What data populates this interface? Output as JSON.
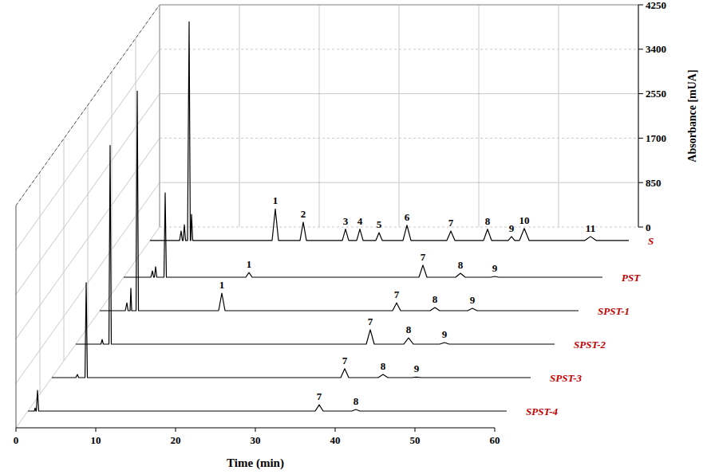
{
  "chart_data": {
    "type": "line",
    "xlabel": "Time (min)",
    "ylabel": "Absorbance [mUA]",
    "xlim": [
      0,
      60
    ],
    "xticks": [
      0,
      10,
      20,
      30,
      40,
      50,
      60
    ],
    "ylim": [
      0,
      4250
    ],
    "yticks": [
      0,
      850,
      1700,
      2550,
      3400,
      4250
    ],
    "grid": true,
    "series": [
      {
        "name": "S",
        "color": "#000000",
        "x": [
          0,
          3.7,
          3.9,
          4.05,
          4.15,
          4.3,
          4.45,
          4.7,
          4.9,
          5.05,
          5.1,
          5.2,
          5.35,
          15.3,
          15.7,
          16.1,
          18.8,
          19.2,
          19.6,
          24.1,
          24.5,
          24.9,
          25.9,
          26.3,
          26.7,
          28.3,
          28.7,
          29.1,
          31.7,
          32.2,
          32.7,
          37.2,
          37.7,
          38.2,
          41.8,
          42.3,
          42.8,
          44.9,
          45.3,
          45.7,
          46.3,
          46.9,
          47.5,
          54.5,
          55.2,
          55.9,
          60
        ],
        "values": [
          0,
          0,
          180,
          0,
          0,
          300,
          0,
          0,
          4180,
          0,
          0,
          500,
          0,
          0,
          600,
          0,
          0,
          350,
          0,
          0,
          215,
          0,
          0,
          215,
          0,
          0,
          150,
          0,
          0,
          290,
          0,
          0,
          180,
          0,
          0,
          215,
          0,
          0,
          75,
          0,
          0,
          230,
          0,
          0,
          75,
          0,
          0
        ],
        "annotations": [
          {
            "x": 15.7,
            "text": "1"
          },
          {
            "x": 19.2,
            "text": "2"
          },
          {
            "x": 24.5,
            "text": "3"
          },
          {
            "x": 26.3,
            "text": "4"
          },
          {
            "x": 28.7,
            "text": "5"
          },
          {
            "x": 32.2,
            "text": "6"
          },
          {
            "x": 37.7,
            "text": "7"
          },
          {
            "x": 42.3,
            "text": "8"
          },
          {
            "x": 45.3,
            "text": "9"
          },
          {
            "x": 46.9,
            "text": "10"
          },
          {
            "x": 55.2,
            "text": "11"
          }
        ]
      },
      {
        "name": "PST",
        "color": "#000000",
        "x": [
          0,
          3.4,
          3.6,
          3.75,
          3.85,
          4.0,
          4.15,
          5.05,
          5.2,
          5.35,
          15.3,
          15.7,
          16.1,
          37.0,
          37.5,
          38.0,
          41.6,
          42.2,
          42.8,
          46.0,
          46.5,
          47.0,
          60
        ],
        "values": [
          0,
          0,
          120,
          0,
          0,
          200,
          0,
          0,
          1615,
          0,
          0,
          90,
          0,
          0,
          230,
          0,
          0,
          75,
          0,
          0,
          15,
          0,
          0
        ],
        "annotations": [
          {
            "x": 15.7,
            "text": "1"
          },
          {
            "x": 37.5,
            "text": "7"
          },
          {
            "x": 42.2,
            "text": "8"
          },
          {
            "x": 46.5,
            "text": "9"
          }
        ]
      },
      {
        "name": "SPST-1",
        "color": "#000000",
        "x": [
          0,
          3.2,
          3.4,
          3.55,
          3.8,
          3.9,
          4.0,
          4.55,
          4.7,
          4.85,
          14.9,
          15.3,
          15.7,
          36.7,
          37.2,
          37.7,
          41.4,
          42.0,
          42.6,
          46.1,
          46.7,
          47.3,
          60
        ],
        "values": [
          0,
          0,
          150,
          0,
          0,
          430,
          0,
          0,
          4200,
          0,
          0,
          335,
          0,
          0,
          150,
          0,
          0,
          60,
          0,
          0,
          45,
          0,
          0
        ],
        "annotations": [
          {
            "x": 15.3,
            "text": "1"
          },
          {
            "x": 37.2,
            "text": "7"
          },
          {
            "x": 42.0,
            "text": "8"
          },
          {
            "x": 46.7,
            "text": "9"
          }
        ]
      },
      {
        "name": "SPST-2",
        "color": "#000000",
        "x": [
          0,
          3.15,
          3.3,
          3.45,
          4.15,
          4.3,
          4.45,
          36.4,
          36.9,
          37.4,
          41.1,
          41.7,
          42.3,
          45.6,
          46.2,
          46.8,
          60
        ],
        "values": [
          0,
          0,
          90,
          0,
          0,
          3800,
          0,
          0,
          275,
          0,
          0,
          120,
          0,
          0,
          30,
          0,
          0
        ],
        "annotations": [
          {
            "x": 36.9,
            "text": "7"
          },
          {
            "x": 41.7,
            "text": "8"
          },
          {
            "x": 46.2,
            "text": "9"
          }
        ]
      },
      {
        "name": "SPST-3",
        "color": "#000000",
        "x": [
          0,
          3.0,
          3.2,
          3.35,
          4.15,
          4.3,
          4.45,
          36.2,
          36.7,
          37.2,
          40.9,
          41.5,
          42.1,
          45.1,
          45.7,
          46.3,
          60
        ],
        "values": [
          0,
          0,
          60,
          0,
          0,
          1815,
          0,
          0,
          170,
          0,
          0,
          60,
          0,
          0,
          10,
          0,
          0
        ],
        "annotations": [
          {
            "x": 36.7,
            "text": "7"
          },
          {
            "x": 41.5,
            "text": "8"
          },
          {
            "x": 45.7,
            "text": "9"
          }
        ]
      },
      {
        "name": "SPST-4",
        "color": "#000000",
        "x": [
          0,
          0.8,
          0.9,
          1.0,
          1.05,
          1.2,
          1.35,
          36.0,
          36.5,
          37.0,
          40.6,
          41.1,
          41.6,
          60
        ],
        "values": [
          0,
          0,
          60,
          0,
          0,
          395,
          0,
          0,
          120,
          0,
          0,
          30,
          0,
          0
        ],
        "annotations": [
          {
            "x": 36.5,
            "text": "7"
          },
          {
            "x": 41.1,
            "text": "8"
          }
        ]
      }
    ]
  }
}
